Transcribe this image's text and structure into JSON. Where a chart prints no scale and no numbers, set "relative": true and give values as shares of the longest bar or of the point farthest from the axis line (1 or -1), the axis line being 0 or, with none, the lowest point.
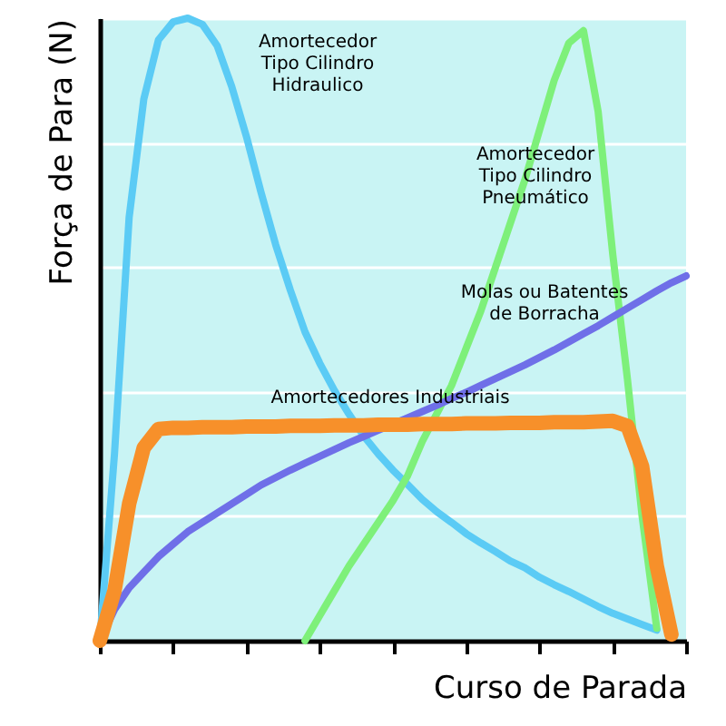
{
  "chart_data": {
    "type": "line",
    "relative": true,
    "xlabel": "Curso de Parada",
    "ylabel": "Força de Para (N)",
    "grid": "y",
    "tick_labels": false,
    "categories": [
      null,
      null,
      null,
      null,
      null,
      null,
      null,
      null,
      null,
      null,
      null,
      null,
      null,
      null,
      null,
      null,
      null,
      null,
      null,
      null,
      null,
      null,
      null,
      null,
      null,
      null,
      null,
      null,
      null,
      null,
      null,
      null,
      null,
      null,
      null,
      null,
      null,
      null,
      null,
      null,
      null
    ],
    "series": [
      {
        "name": "Amortecedor\nTipo Cilindro\nHidraulico",
        "color": "#5bcbf5",
        "values": [
          0,
          0.3,
          0.68,
          0.87,
          0.965,
          0.994,
          1.0,
          0.99,
          0.956,
          0.89,
          0.81,
          0.72,
          0.636,
          0.563,
          0.496,
          0.446,
          0.402,
          0.364,
          0.329,
          0.3,
          0.274,
          0.251,
          0.227,
          0.207,
          0.19,
          0.172,
          0.157,
          0.143,
          0.128,
          0.117,
          0.102,
          0.09,
          0.079,
          0.067,
          0.055,
          0.044,
          0.035,
          0.026,
          0.017,
          null,
          null
        ]
      },
      {
        "name": "Amortecedor\nTipo Cilindro\nPneumático",
        "color": "#7ef07a",
        "values": [
          null,
          null,
          null,
          null,
          null,
          null,
          null,
          null,
          null,
          null,
          null,
          null,
          null,
          null,
          0,
          0.04,
          0.08,
          0.12,
          0.155,
          0.19,
          0.225,
          0.265,
          0.32,
          0.365,
          0.41,
          0.47,
          0.53,
          0.6,
          0.67,
          0.74,
          0.82,
          0.9,
          0.96,
          0.98,
          0.85,
          0.62,
          0.42,
          0.2,
          0.02,
          null,
          null
        ]
      },
      {
        "name": "Molas ou Batentes\nde Borracha",
        "color": "#6f6fe8",
        "values": [
          0,
          0.05,
          0.085,
          0.11,
          0.135,
          0.155,
          0.175,
          0.19,
          0.205,
          0.22,
          0.235,
          0.25,
          0.262,
          0.274,
          0.285,
          0.296,
          0.307,
          0.318,
          0.328,
          0.338,
          0.348,
          0.358,
          0.368,
          0.378,
          0.389,
          0.399,
          0.41,
          0.421,
          0.432,
          0.443,
          0.455,
          0.467,
          0.48,
          0.493,
          0.506,
          0.52,
          0.534,
          0.548,
          0.562,
          0.575,
          0.586
        ]
      },
      {
        "name": "Amortecedores Industriais",
        "color": "#f7902a",
        "values": [
          0,
          0.08,
          0.22,
          0.31,
          0.34,
          0.342,
          0.342,
          0.343,
          0.343,
          0.343,
          0.344,
          0.344,
          0.344,
          0.345,
          0.345,
          0.345,
          0.346,
          0.346,
          0.346,
          0.347,
          0.347,
          0.347,
          0.348,
          0.348,
          0.348,
          0.349,
          0.349,
          0.349,
          0.35,
          0.35,
          0.35,
          0.351,
          0.351,
          0.351,
          0.352,
          0.353,
          0.345,
          0.28,
          0.12,
          0.01,
          null
        ]
      }
    ]
  }
}
